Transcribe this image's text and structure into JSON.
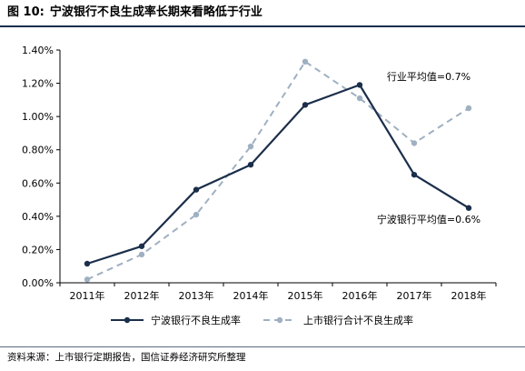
{
  "figure": {
    "number": "图 10:",
    "title": "宁波银行不良生成率长期来看略低于行业",
    "source": "资料来源：上市银行定期报告，国信证券经济研究所整理"
  },
  "colors": {
    "series_solid": "#1b2e4b",
    "series_dashed": "#9fb0c2",
    "rule": "#1b2e4b"
  },
  "chart_data": {
    "type": "line",
    "categories": [
      "2011年",
      "2012年",
      "2013年",
      "2014年",
      "2015年",
      "2016年",
      "2017年",
      "2018年"
    ],
    "series": [
      {
        "name": "宁波银行不良生成率",
        "style": "solid",
        "values": [
          0.00115,
          0.0022,
          0.0056,
          0.0071,
          0.0107,
          0.0119,
          0.0065,
          0.0045
        ]
      },
      {
        "name": "上市银行合计不良生成率",
        "style": "dashed",
        "values": [
          0.0002,
          0.0017,
          0.0041,
          0.0082,
          0.0133,
          0.0111,
          0.0084,
          0.0105
        ]
      }
    ],
    "ylim": [
      0,
      0.014
    ],
    "yticks": [
      "0.00%",
      "0.20%",
      "0.40%",
      "0.60%",
      "0.80%",
      "1.00%",
      "1.20%",
      "1.40%"
    ],
    "grid": false,
    "legend_position": "bottom",
    "annotations": [
      {
        "text": "行业平均值=0.7%",
        "anchor_category": "2017年",
        "anchor_value": 0.0122
      },
      {
        "text": "宁波银行平均值=0.6%",
        "anchor_category": "2017年",
        "anchor_value": 0.0036
      }
    ]
  }
}
